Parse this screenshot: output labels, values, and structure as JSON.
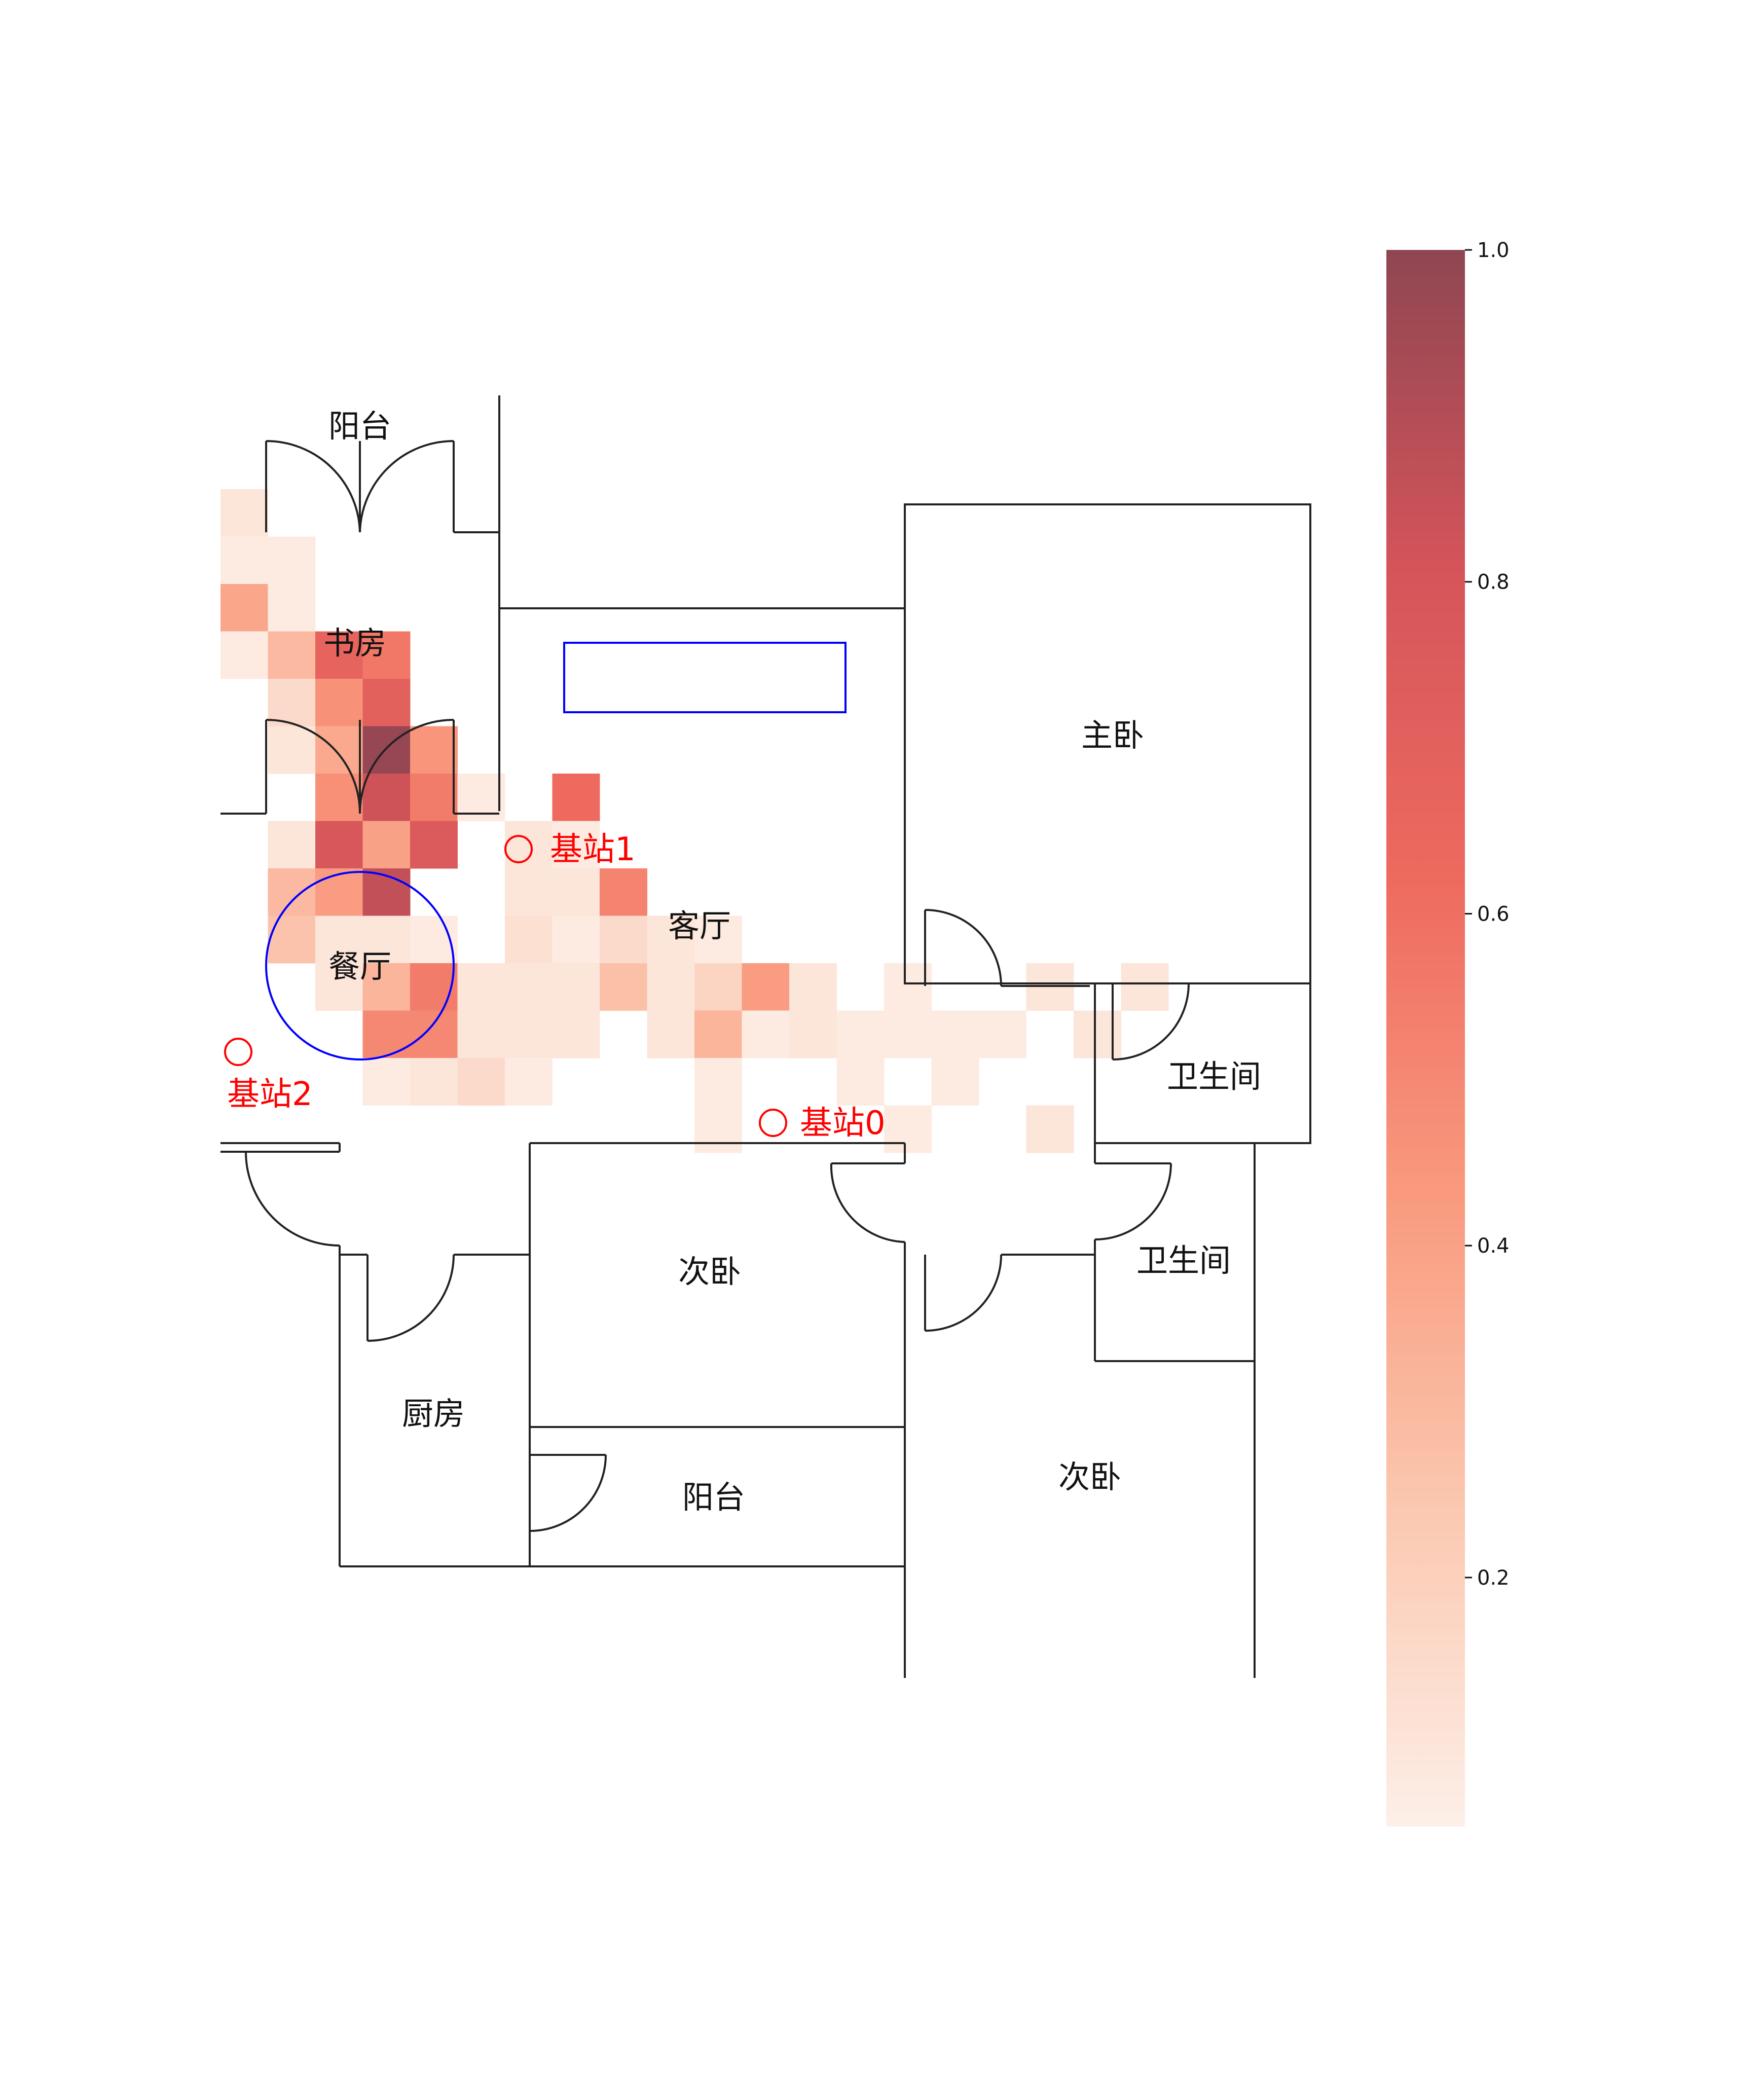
{
  "rooms": [
    {
      "id": "balcony-top",
      "label": "阳台"
    },
    {
      "id": "study",
      "label": "书房"
    },
    {
      "id": "master-bedroom",
      "label": "主卧"
    },
    {
      "id": "living-room",
      "label": "客厅"
    },
    {
      "id": "dining-room",
      "label": "餐厅"
    },
    {
      "id": "bathroom-1",
      "label": "卫生间"
    },
    {
      "id": "bathroom-2",
      "label": "卫生间"
    },
    {
      "id": "second-bedroom-1",
      "label": "次卧"
    },
    {
      "id": "kitchen",
      "label": "厨房"
    },
    {
      "id": "balcony-bottom",
      "label": "阳台"
    },
    {
      "id": "second-bedroom-2",
      "label": "次卧"
    }
  ],
  "stations": [
    {
      "id": "station-0",
      "label": "基站0"
    },
    {
      "id": "station-1",
      "label": "基站1"
    },
    {
      "id": "station-2",
      "label": "基站2"
    }
  ],
  "colors": {
    "station": "#ff0000",
    "marker": "#0000ff",
    "wall": "#222222",
    "colormap": [
      "#fdefe8",
      "#fbc8b0",
      "#f99a7e",
      "#ee6a5f",
      "#d4545a",
      "#8f4652"
    ]
  },
  "colorbar": {
    "min": 0.05,
    "max": 1.0,
    "ticks": [
      "0.2",
      "0.4",
      "0.6",
      "0.8",
      "1.0"
    ]
  },
  "heatmap": {
    "grid_cols": 21,
    "grid_rows": 14,
    "cells": [
      {
        "c": 0,
        "r": 0,
        "v": 0.1
      },
      {
        "c": 0,
        "r": 1,
        "v": 0.07
      },
      {
        "c": 1,
        "r": 1,
        "v": 0.07
      },
      {
        "c": 0,
        "r": 2,
        "v": 0.38
      },
      {
        "c": 1,
        "r": 2,
        "v": 0.07
      },
      {
        "c": 0,
        "r": 3,
        "v": 0.07
      },
      {
        "c": 1,
        "r": 3,
        "v": 0.3
      },
      {
        "c": 2,
        "r": 3,
        "v": 0.67
      },
      {
        "c": 3,
        "r": 3,
        "v": 0.57
      },
      {
        "c": 1,
        "r": 4,
        "v": 0.15
      },
      {
        "c": 2,
        "r": 4,
        "v": 0.46
      },
      {
        "c": 3,
        "r": 4,
        "v": 0.7
      },
      {
        "c": 1,
        "r": 5,
        "v": 0.1
      },
      {
        "c": 2,
        "r": 5,
        "v": 0.37
      },
      {
        "c": 3,
        "r": 5,
        "v": 0.98
      },
      {
        "c": 4,
        "r": 5,
        "v": 0.45
      },
      {
        "c": 2,
        "r": 6,
        "v": 0.47
      },
      {
        "c": 3,
        "r": 6,
        "v": 0.83
      },
      {
        "c": 4,
        "r": 6,
        "v": 0.55
      },
      {
        "c": 5,
        "r": 6,
        "v": 0.07
      },
      {
        "c": 7,
        "r": 6,
        "v": 0.62
      },
      {
        "c": 1,
        "r": 7,
        "v": 0.1
      },
      {
        "c": 2,
        "r": 7,
        "v": 0.78
      },
      {
        "c": 3,
        "r": 7,
        "v": 0.4
      },
      {
        "c": 4,
        "r": 7,
        "v": 0.76
      },
      {
        "c": 6,
        "r": 7,
        "v": 0.1
      },
      {
        "c": 7,
        "r": 7,
        "v": 0.07
      },
      {
        "c": 1,
        "r": 8,
        "v": 0.3
      },
      {
        "c": 2,
        "r": 8,
        "v": 0.42
      },
      {
        "c": 3,
        "r": 8,
        "v": 0.86
      },
      {
        "c": 6,
        "r": 8,
        "v": 0.1
      },
      {
        "c": 7,
        "r": 8,
        "v": 0.1
      },
      {
        "c": 8,
        "r": 8,
        "v": 0.52
      },
      {
        "c": 1,
        "r": 9,
        "v": 0.26
      },
      {
        "c": 2,
        "r": 9,
        "v": 0.1
      },
      {
        "c": 3,
        "r": 9,
        "v": 0.1
      },
      {
        "c": 4,
        "r": 9,
        "v": 0.07
      },
      {
        "c": 6,
        "r": 9,
        "v": 0.12
      },
      {
        "c": 7,
        "r": 9,
        "v": 0.07
      },
      {
        "c": 8,
        "r": 9,
        "v": 0.15
      },
      {
        "c": 9,
        "r": 9,
        "v": 0.1
      },
      {
        "c": 10,
        "r": 9,
        "v": 0.07
      },
      {
        "c": 2,
        "r": 10,
        "v": 0.1
      },
      {
        "c": 3,
        "r": 10,
        "v": 0.32
      },
      {
        "c": 4,
        "r": 10,
        "v": 0.55
      },
      {
        "c": 5,
        "r": 10,
        "v": 0.1
      },
      {
        "c": 6,
        "r": 10,
        "v": 0.1
      },
      {
        "c": 7,
        "r": 10,
        "v": 0.1
      },
      {
        "c": 8,
        "r": 10,
        "v": 0.27
      },
      {
        "c": 9,
        "r": 10,
        "v": 0.1
      },
      {
        "c": 10,
        "r": 10,
        "v": 0.18
      },
      {
        "c": 11,
        "r": 10,
        "v": 0.42
      },
      {
        "c": 12,
        "r": 10,
        "v": 0.1
      },
      {
        "c": 14,
        "r": 10,
        "v": 0.07
      },
      {
        "c": 17,
        "r": 10,
        "v": 0.1
      },
      {
        "c": 19,
        "r": 10,
        "v": 0.1
      },
      {
        "c": 3,
        "r": 11,
        "v": 0.5
      },
      {
        "c": 4,
        "r": 11,
        "v": 0.5
      },
      {
        "c": 5,
        "r": 11,
        "v": 0.1
      },
      {
        "c": 6,
        "r": 11,
        "v": 0.1
      },
      {
        "c": 7,
        "r": 11,
        "v": 0.1
      },
      {
        "c": 9,
        "r": 11,
        "v": 0.1
      },
      {
        "c": 10,
        "r": 11,
        "v": 0.32
      },
      {
        "c": 11,
        "r": 11,
        "v": 0.07
      },
      {
        "c": 12,
        "r": 11,
        "v": 0.1
      },
      {
        "c": 13,
        "r": 11,
        "v": 0.07
      },
      {
        "c": 14,
        "r": 11,
        "v": 0.07
      },
      {
        "c": 15,
        "r": 11,
        "v": 0.07
      },
      {
        "c": 16,
        "r": 11,
        "v": 0.07
      },
      {
        "c": 18,
        "r": 11,
        "v": 0.1
      },
      {
        "c": 3,
        "r": 12,
        "v": 0.07
      },
      {
        "c": 4,
        "r": 12,
        "v": 0.1
      },
      {
        "c": 5,
        "r": 12,
        "v": 0.15
      },
      {
        "c": 6,
        "r": 12,
        "v": 0.07
      },
      {
        "c": 10,
        "r": 12,
        "v": 0.07
      },
      {
        "c": 13,
        "r": 12,
        "v": 0.07
      },
      {
        "c": 15,
        "r": 12,
        "v": 0.07
      },
      {
        "c": 10,
        "r": 13,
        "v": 0.07
      },
      {
        "c": 14,
        "r": 13,
        "v": 0.07
      },
      {
        "c": 17,
        "r": 13,
        "v": 0.1
      }
    ]
  }
}
